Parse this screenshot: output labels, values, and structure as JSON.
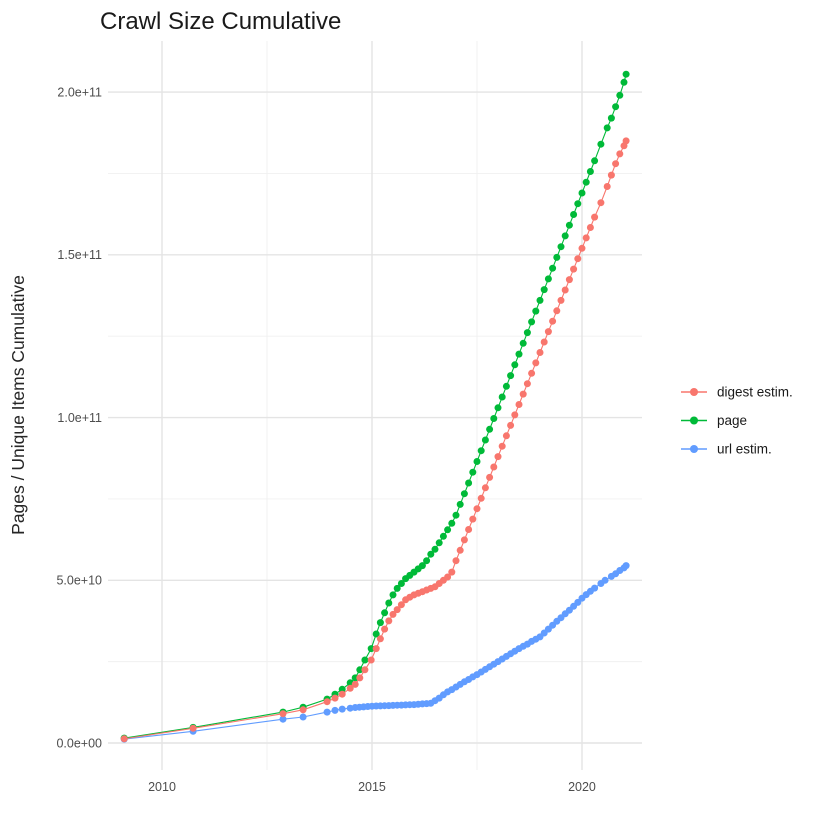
{
  "chart_data": {
    "type": "scatter",
    "title": "Crawl Size Cumulative",
    "xlabel": "",
    "ylabel": "Pages / Unique Items Cumulative",
    "background_color": "#ffffff",
    "grid": true,
    "grid_major_color": "#e4e4e4",
    "grid_minor_color": "#f0f0f0",
    "legend_position": "right",
    "x_domain": [
      2008.714,
      2021.429
    ],
    "y_domain": [
      -8300000000.0,
      215700000000.0
    ],
    "x_ticks": [
      {
        "value": 2010,
        "label": "2010"
      },
      {
        "value": 2015,
        "label": "2015"
      },
      {
        "value": 2020,
        "label": "2020"
      }
    ],
    "x_minor": [
      2012.5,
      2017.5
    ],
    "y_ticks": [
      {
        "value": 0,
        "label": "0.0e+00"
      },
      {
        "value": 50000000000.0,
        "label": "5.0e+10"
      },
      {
        "value": 100000000000.0,
        "label": "1.0e+11"
      },
      {
        "value": 150000000000.0,
        "label": "1.5e+11"
      },
      {
        "value": 200000000000.0,
        "label": "2.0e+11"
      }
    ],
    "y_minor": [
      25000000000.0,
      75000000000.0,
      125000000000.0,
      175000000000.0
    ],
    "series": [
      {
        "name": "digest estim.",
        "color": "#F8766D",
        "z": 3,
        "points": [
          [
            2009.1,
            1300000000.0
          ],
          [
            2010.74,
            4500000000.0
          ],
          [
            2012.88,
            9000000000.0
          ],
          [
            2013.36,
            10200000000.0
          ],
          [
            2013.93,
            12700000000.0
          ],
          [
            2014.12,
            13800000000.0
          ],
          [
            2014.29,
            15000000000.0
          ],
          [
            2014.48,
            16800000000.0
          ],
          [
            2014.6,
            18000000000.0
          ],
          [
            2014.71,
            20000000000.0
          ],
          [
            2014.83,
            22500000000.0
          ],
          [
            2014.98,
            25500000000.0
          ],
          [
            2015.1,
            29000000000.0
          ],
          [
            2015.2,
            32000000000.0
          ],
          [
            2015.3,
            35000000000.0
          ],
          [
            2015.4,
            37500000000.0
          ],
          [
            2015.5,
            39500000000.0
          ],
          [
            2015.6,
            41000000000.0
          ],
          [
            2015.7,
            42500000000.0
          ],
          [
            2015.8,
            44000000000.0
          ],
          [
            2015.9,
            44800000000.0
          ],
          [
            2016.0,
            45500000000.0
          ],
          [
            2016.1,
            46000000000.0
          ],
          [
            2016.2,
            46500000000.0
          ],
          [
            2016.3,
            47000000000.0
          ],
          [
            2016.4,
            47500000000.0
          ],
          [
            2016.5,
            48000000000.0
          ],
          [
            2016.6,
            49000000000.0
          ],
          [
            2016.7,
            50000000000.0
          ],
          [
            2016.8,
            51000000000.0
          ],
          [
            2016.9,
            52500000000.0
          ],
          [
            2017.0,
            56000000000.0
          ],
          [
            2017.1,
            59200000000.0
          ],
          [
            2017.2,
            62400000000.0
          ],
          [
            2017.3,
            65600000000.0
          ],
          [
            2017.4,
            68800000000.0
          ],
          [
            2017.5,
            72000000000.0
          ],
          [
            2017.6,
            75200000000.0
          ],
          [
            2017.7,
            78400000000.0
          ],
          [
            2017.8,
            81600000000.0
          ],
          [
            2017.9,
            84800000000.0
          ],
          [
            2018.0,
            88000000000.0
          ],
          [
            2018.1,
            91200000000.0
          ],
          [
            2018.2,
            94400000000.0
          ],
          [
            2018.3,
            97600000000.0
          ],
          [
            2018.4,
            100800000000.0
          ],
          [
            2018.5,
            104000000000.0
          ],
          [
            2018.6,
            107200000000.0
          ],
          [
            2018.7,
            110400000000.0
          ],
          [
            2018.8,
            113600000000.0
          ],
          [
            2018.9,
            116800000000.0
          ],
          [
            2019.0,
            120000000000.0
          ],
          [
            2019.1,
            123200000000.0
          ],
          [
            2019.2,
            126400000000.0
          ],
          [
            2019.3,
            129600000000.0
          ],
          [
            2019.4,
            132800000000.0
          ],
          [
            2019.5,
            136000000000.0
          ],
          [
            2019.6,
            139200000000.0
          ],
          [
            2019.7,
            142400000000.0
          ],
          [
            2019.8,
            145600000000.0
          ],
          [
            2019.9,
            148800000000.0
          ],
          [
            2020.0,
            152000000000.0
          ],
          [
            2020.1,
            155200000000.0
          ],
          [
            2020.2,
            158400000000.0
          ],
          [
            2020.3,
            161600000000.0
          ],
          [
            2020.45,
            166000000000.0
          ],
          [
            2020.6,
            171000000000.0
          ],
          [
            2020.7,
            174500000000.0
          ],
          [
            2020.8,
            178000000000.0
          ],
          [
            2020.9,
            181000000000.0
          ],
          [
            2021.0,
            183500000000.0
          ],
          [
            2021.05,
            185000000000.0
          ]
        ]
      },
      {
        "name": "page",
        "color": "#00BA38",
        "z": 2,
        "points": [
          [
            2009.1,
            1500000000.0
          ],
          [
            2010.74,
            4800000000.0
          ],
          [
            2012.88,
            9500000000.0
          ],
          [
            2013.36,
            11000000000.0
          ],
          [
            2013.93,
            13500000000.0
          ],
          [
            2014.12,
            15000000000.0
          ],
          [
            2014.29,
            16500000000.0
          ],
          [
            2014.48,
            18500000000.0
          ],
          [
            2014.6,
            20000000000.0
          ],
          [
            2014.71,
            22500000000.0
          ],
          [
            2014.83,
            25500000000.0
          ],
          [
            2014.98,
            29000000000.0
          ],
          [
            2015.1,
            33500000000.0
          ],
          [
            2015.2,
            37000000000.0
          ],
          [
            2015.3,
            40000000000.0
          ],
          [
            2015.4,
            43000000000.0
          ],
          [
            2015.5,
            45500000000.0
          ],
          [
            2015.6,
            47500000000.0
          ],
          [
            2015.7,
            49000000000.0
          ],
          [
            2015.8,
            50500000000.0
          ],
          [
            2015.9,
            51500000000.0
          ],
          [
            2016.0,
            52500000000.0
          ],
          [
            2016.1,
            53500000000.0
          ],
          [
            2016.2,
            54500000000.0
          ],
          [
            2016.3,
            56000000000.0
          ],
          [
            2016.4,
            58000000000.0
          ],
          [
            2016.5,
            59500000000.0
          ],
          [
            2016.6,
            61500000000.0
          ],
          [
            2016.7,
            63500000000.0
          ],
          [
            2016.8,
            65500000000.0
          ],
          [
            2016.9,
            67500000000.0
          ],
          [
            2017.0,
            70000000000.0
          ],
          [
            2017.1,
            73300000000.0
          ],
          [
            2017.2,
            76600000000.0
          ],
          [
            2017.3,
            79900000000.0
          ],
          [
            2017.4,
            83200000000.0
          ],
          [
            2017.5,
            86500000000.0
          ],
          [
            2017.6,
            89800000000.0
          ],
          [
            2017.7,
            93100000000.0
          ],
          [
            2017.8,
            96400000000.0
          ],
          [
            2017.9,
            99700000000.0
          ],
          [
            2018.0,
            103000000000.0
          ],
          [
            2018.1,
            106300000000.0
          ],
          [
            2018.2,
            109600000000.0
          ],
          [
            2018.3,
            112900000000.0
          ],
          [
            2018.4,
            116200000000.0
          ],
          [
            2018.5,
            119500000000.0
          ],
          [
            2018.6,
            122800000000.0
          ],
          [
            2018.7,
            126100000000.0
          ],
          [
            2018.8,
            129400000000.0
          ],
          [
            2018.9,
            132700000000.0
          ],
          [
            2019.0,
            136000000000.0
          ],
          [
            2019.1,
            139300000000.0
          ],
          [
            2019.2,
            142600000000.0
          ],
          [
            2019.3,
            145900000000.0
          ],
          [
            2019.4,
            149200000000.0
          ],
          [
            2019.5,
            152500000000.0
          ],
          [
            2019.6,
            155800000000.0
          ],
          [
            2019.7,
            159100000000.0
          ],
          [
            2019.8,
            162400000000.0
          ],
          [
            2019.9,
            165700000000.0
          ],
          [
            2020.0,
            169000000000.0
          ],
          [
            2020.1,
            172300000000.0
          ],
          [
            2020.2,
            175600000000.0
          ],
          [
            2020.3,
            178900000000.0
          ],
          [
            2020.45,
            184000000000.0
          ],
          [
            2020.6,
            189000000000.0
          ],
          [
            2020.7,
            192000000000.0
          ],
          [
            2020.8,
            195500000000.0
          ],
          [
            2020.9,
            199000000000.0
          ],
          [
            2021.0,
            203000000000.0
          ],
          [
            2021.05,
            205500000000.0
          ]
        ]
      },
      {
        "name": "url estim.",
        "color": "#619CFF",
        "z": 1,
        "points": [
          [
            2009.1,
            1200000000.0
          ],
          [
            2010.74,
            3600000000.0
          ],
          [
            2012.88,
            7300000000.0
          ],
          [
            2013.36,
            8000000000.0
          ],
          [
            2013.93,
            9500000000.0
          ],
          [
            2014.12,
            10000000000.0
          ],
          [
            2014.29,
            10400000000.0
          ],
          [
            2014.48,
            10700000000.0
          ],
          [
            2014.6,
            10900000000.0
          ],
          [
            2014.7,
            11000000000.0
          ],
          [
            2014.8,
            11100000000.0
          ],
          [
            2014.9,
            11200000000.0
          ],
          [
            2015.0,
            11300000000.0
          ],
          [
            2015.1,
            11350000000.0
          ],
          [
            2015.2,
            11400000000.0
          ],
          [
            2015.3,
            11450000000.0
          ],
          [
            2015.4,
            11500000000.0
          ],
          [
            2015.5,
            11550000000.0
          ],
          [
            2015.6,
            11600000000.0
          ],
          [
            2015.7,
            11650000000.0
          ],
          [
            2015.8,
            11700000000.0
          ],
          [
            2015.9,
            11750000000.0
          ],
          [
            2016.0,
            11800000000.0
          ],
          [
            2016.1,
            11900000000.0
          ],
          [
            2016.2,
            12000000000.0
          ],
          [
            2016.3,
            12100000000.0
          ],
          [
            2016.4,
            12200000000.0
          ],
          [
            2016.5,
            13000000000.0
          ],
          [
            2016.6,
            13800000000.0
          ],
          [
            2016.7,
            14800000000.0
          ],
          [
            2016.8,
            15700000000.0
          ],
          [
            2016.9,
            16400000000.0
          ],
          [
            2017.0,
            17200000000.0
          ],
          [
            2017.1,
            18000000000.0
          ],
          [
            2017.2,
            18800000000.0
          ],
          [
            2017.3,
            19500000000.0
          ],
          [
            2017.4,
            20300000000.0
          ],
          [
            2017.5,
            21000000000.0
          ],
          [
            2017.6,
            21800000000.0
          ],
          [
            2017.7,
            22600000000.0
          ],
          [
            2017.8,
            23400000000.0
          ],
          [
            2017.9,
            24200000000.0
          ],
          [
            2018.0,
            25000000000.0
          ],
          [
            2018.1,
            25800000000.0
          ],
          [
            2018.2,
            26600000000.0
          ],
          [
            2018.3,
            27400000000.0
          ],
          [
            2018.4,
            28200000000.0
          ],
          [
            2018.5,
            29000000000.0
          ],
          [
            2018.6,
            29700000000.0
          ],
          [
            2018.7,
            30400000000.0
          ],
          [
            2018.8,
            31200000000.0
          ],
          [
            2018.9,
            31900000000.0
          ],
          [
            2019.0,
            32600000000.0
          ],
          [
            2019.1,
            33800000000.0
          ],
          [
            2019.2,
            35000000000.0
          ],
          [
            2019.3,
            36200000000.0
          ],
          [
            2019.4,
            37400000000.0
          ],
          [
            2019.5,
            38500000000.0
          ],
          [
            2019.6,
            39700000000.0
          ],
          [
            2019.7,
            40800000000.0
          ],
          [
            2019.8,
            42000000000.0
          ],
          [
            2019.9,
            43200000000.0
          ],
          [
            2020.0,
            44500000000.0
          ],
          [
            2020.1,
            45600000000.0
          ],
          [
            2020.2,
            46600000000.0
          ],
          [
            2020.3,
            47600000000.0
          ],
          [
            2020.45,
            49000000000.0
          ],
          [
            2020.55,
            50000000000.0
          ],
          [
            2020.7,
            51200000000.0
          ],
          [
            2020.8,
            52000000000.0
          ],
          [
            2020.9,
            53000000000.0
          ],
          [
            2021.0,
            53800000000.0
          ],
          [
            2021.05,
            54500000000.0
          ]
        ]
      }
    ]
  }
}
